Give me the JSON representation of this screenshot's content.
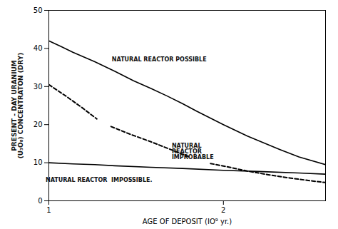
{
  "chart_data": {
    "type": "line",
    "xlabel": "AGE OF DEPOSIT (IO⁹ yr.)",
    "ylabel": "PRESENT - DAY URANIUM\n(U₃O₈) CONCENTRATON (DRY)",
    "log": "x",
    "grid": false,
    "xlim": [
      1.0,
      3.0
    ],
    "ylim": [
      0,
      50
    ],
    "xticks": [
      1,
      2
    ],
    "yticks": [
      0,
      10,
      20,
      30,
      40,
      50
    ],
    "series": [
      {
        "color": "#000000",
        "line_style": "solid",
        "x": [
          1.0,
          1.05,
          1.1,
          1.2,
          1.3,
          1.4,
          1.5,
          1.6,
          1.7,
          1.8,
          2.0,
          2.2,
          2.5,
          2.7,
          3.0
        ],
        "values": [
          42.0,
          40.5,
          39.0,
          36.5,
          34.0,
          31.5,
          29.5,
          27.5,
          25.5,
          23.5,
          20.0,
          17.0,
          13.5,
          11.5,
          9.5
        ]
      },
      {
        "color": "#000000",
        "line_style": "solid",
        "x": [
          1.0,
          1.1,
          1.2,
          1.3,
          1.5,
          1.7,
          2.0,
          2.3,
          2.7,
          3.0
        ],
        "values": [
          10.0,
          9.7,
          9.5,
          9.2,
          8.8,
          8.5,
          8.0,
          7.7,
          7.3,
          7.0
        ]
      },
      {
        "color": "#000000",
        "line_style": "dashed",
        "x": [
          1.0,
          1.07,
          1.14,
          1.21
        ],
        "values": [
          30.5,
          27.5,
          24.5,
          21.5
        ]
      },
      {
        "color": "#000000",
        "line_style": "dashed",
        "x": [
          1.28,
          1.38,
          1.5,
          1.62,
          1.75
        ],
        "values": [
          19.5,
          17.5,
          15.5,
          13.5,
          11.5
        ]
      },
      {
        "color": "#000000",
        "line_style": "dashed",
        "x": [
          1.9,
          2.05,
          2.2,
          2.4,
          2.6,
          2.85,
          3.0
        ],
        "values": [
          9.8,
          8.8,
          7.8,
          6.8,
          6.0,
          5.2,
          4.8
        ]
      }
    ],
    "annotations": [
      {
        "text": "NATURAL REACTOR POSSIBLE",
        "x": 1.55,
        "y": 37.0
      },
      {
        "text": "NATURAL\nREACTOR\nIMPROBABLE",
        "x": 1.62,
        "y": 13.0
      },
      {
        "text": "NATURAL REACTOR  IMPOSSIBLE.",
        "x": 1.22,
        "y": 5.5
      }
    ]
  }
}
